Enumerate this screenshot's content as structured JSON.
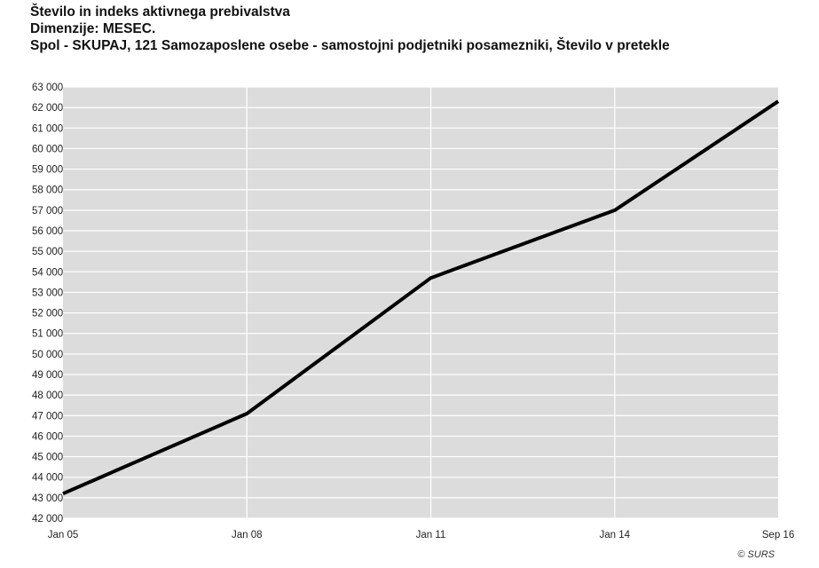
{
  "header": {
    "title_line1": "Število in indeks aktivnega prebivalstva",
    "title_line2": "Dimenzije: MESEC.",
    "title_line3": "Spol - SKUPAJ, 121 Samozaposlene osebe - samostojni podjetniki posamezniki, Število v pretekle"
  },
  "footer": {
    "copyright": "© SURS"
  },
  "chart_data": {
    "type": "line",
    "title": "Število in indeks aktivnega prebivalstva",
    "xlabel": "",
    "ylabel": "",
    "x": [
      "Jan 05",
      "Jan 08",
      "Jan 11",
      "Jan 14",
      "Sep 16"
    ],
    "x_ticks": [
      "Jan 05",
      "Jan 08",
      "Jan 11",
      "Jan 14",
      "Sep 16"
    ],
    "series": [
      {
        "values": [
          43200,
          47100,
          53700,
          57000,
          62300
        ]
      }
    ],
    "ylim": [
      42000,
      63000
    ],
    "y_ticks": [
      "42 000",
      "43 000",
      "44 000",
      "45 000",
      "46 000",
      "47 000",
      "48 000",
      "49 000",
      "50 000",
      "51 000",
      "52 000",
      "53 000",
      "54 000",
      "55 000",
      "56 000",
      "57 000",
      "58 000",
      "59 000",
      "60 000",
      "61 000",
      "62 000",
      "63 000"
    ],
    "grid": true,
    "line_color": "#000000",
    "plot_background": "#dcdcdc"
  }
}
